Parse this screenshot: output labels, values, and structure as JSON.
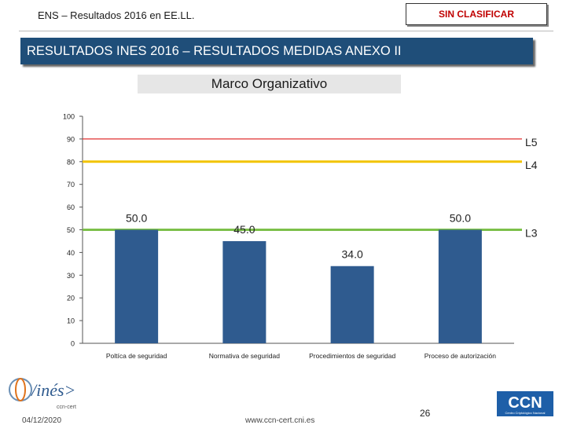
{
  "header": {
    "title": "ENS – Resultados 2016 en EE.LL.",
    "classification": "SIN CLASIFICAR"
  },
  "banner": {
    "title": "RESULTADOS INES 2016 – RESULTADOS MEDIDAS ANEXO II"
  },
  "subtitle": "Marco Organizativo",
  "chart_data": {
    "type": "bar",
    "categories": [
      "Poltíca de seguridad",
      "Normativa de seguridad",
      "Procedimientos de seguridad",
      "Proceso de autorización"
    ],
    "values": [
      50.0,
      45.0,
      34.0,
      50.0
    ],
    "value_labels": [
      "50.0",
      "45.0",
      "34.0",
      "50.0"
    ],
    "ylim": [
      0,
      100
    ],
    "yticks": [
      0,
      10,
      20,
      30,
      40,
      50,
      60,
      70,
      80,
      90,
      100
    ],
    "ytick_labels": [
      "0",
      "10",
      "20",
      "30",
      "40",
      "50",
      "60",
      "70",
      "80",
      "90",
      "100"
    ],
    "reference_lines": [
      {
        "label": "L5",
        "value": 90,
        "color": "#e03030"
      },
      {
        "label": "L4",
        "value": 80,
        "color": "#f2c400"
      },
      {
        "label": "L3",
        "value": 50,
        "color": "#7cc04a"
      }
    ],
    "bar_color": "#2f5b8f",
    "grid": false
  },
  "footer": {
    "date": "04/12/2020",
    "url": "www.ccn-cert.cni.es",
    "page": "26"
  },
  "logos": {
    "left_text": "/inés>",
    "left_sub": "ccn-cert",
    "right_text": "CCN",
    "right_sub": "Centro Criptológico Nacional"
  }
}
